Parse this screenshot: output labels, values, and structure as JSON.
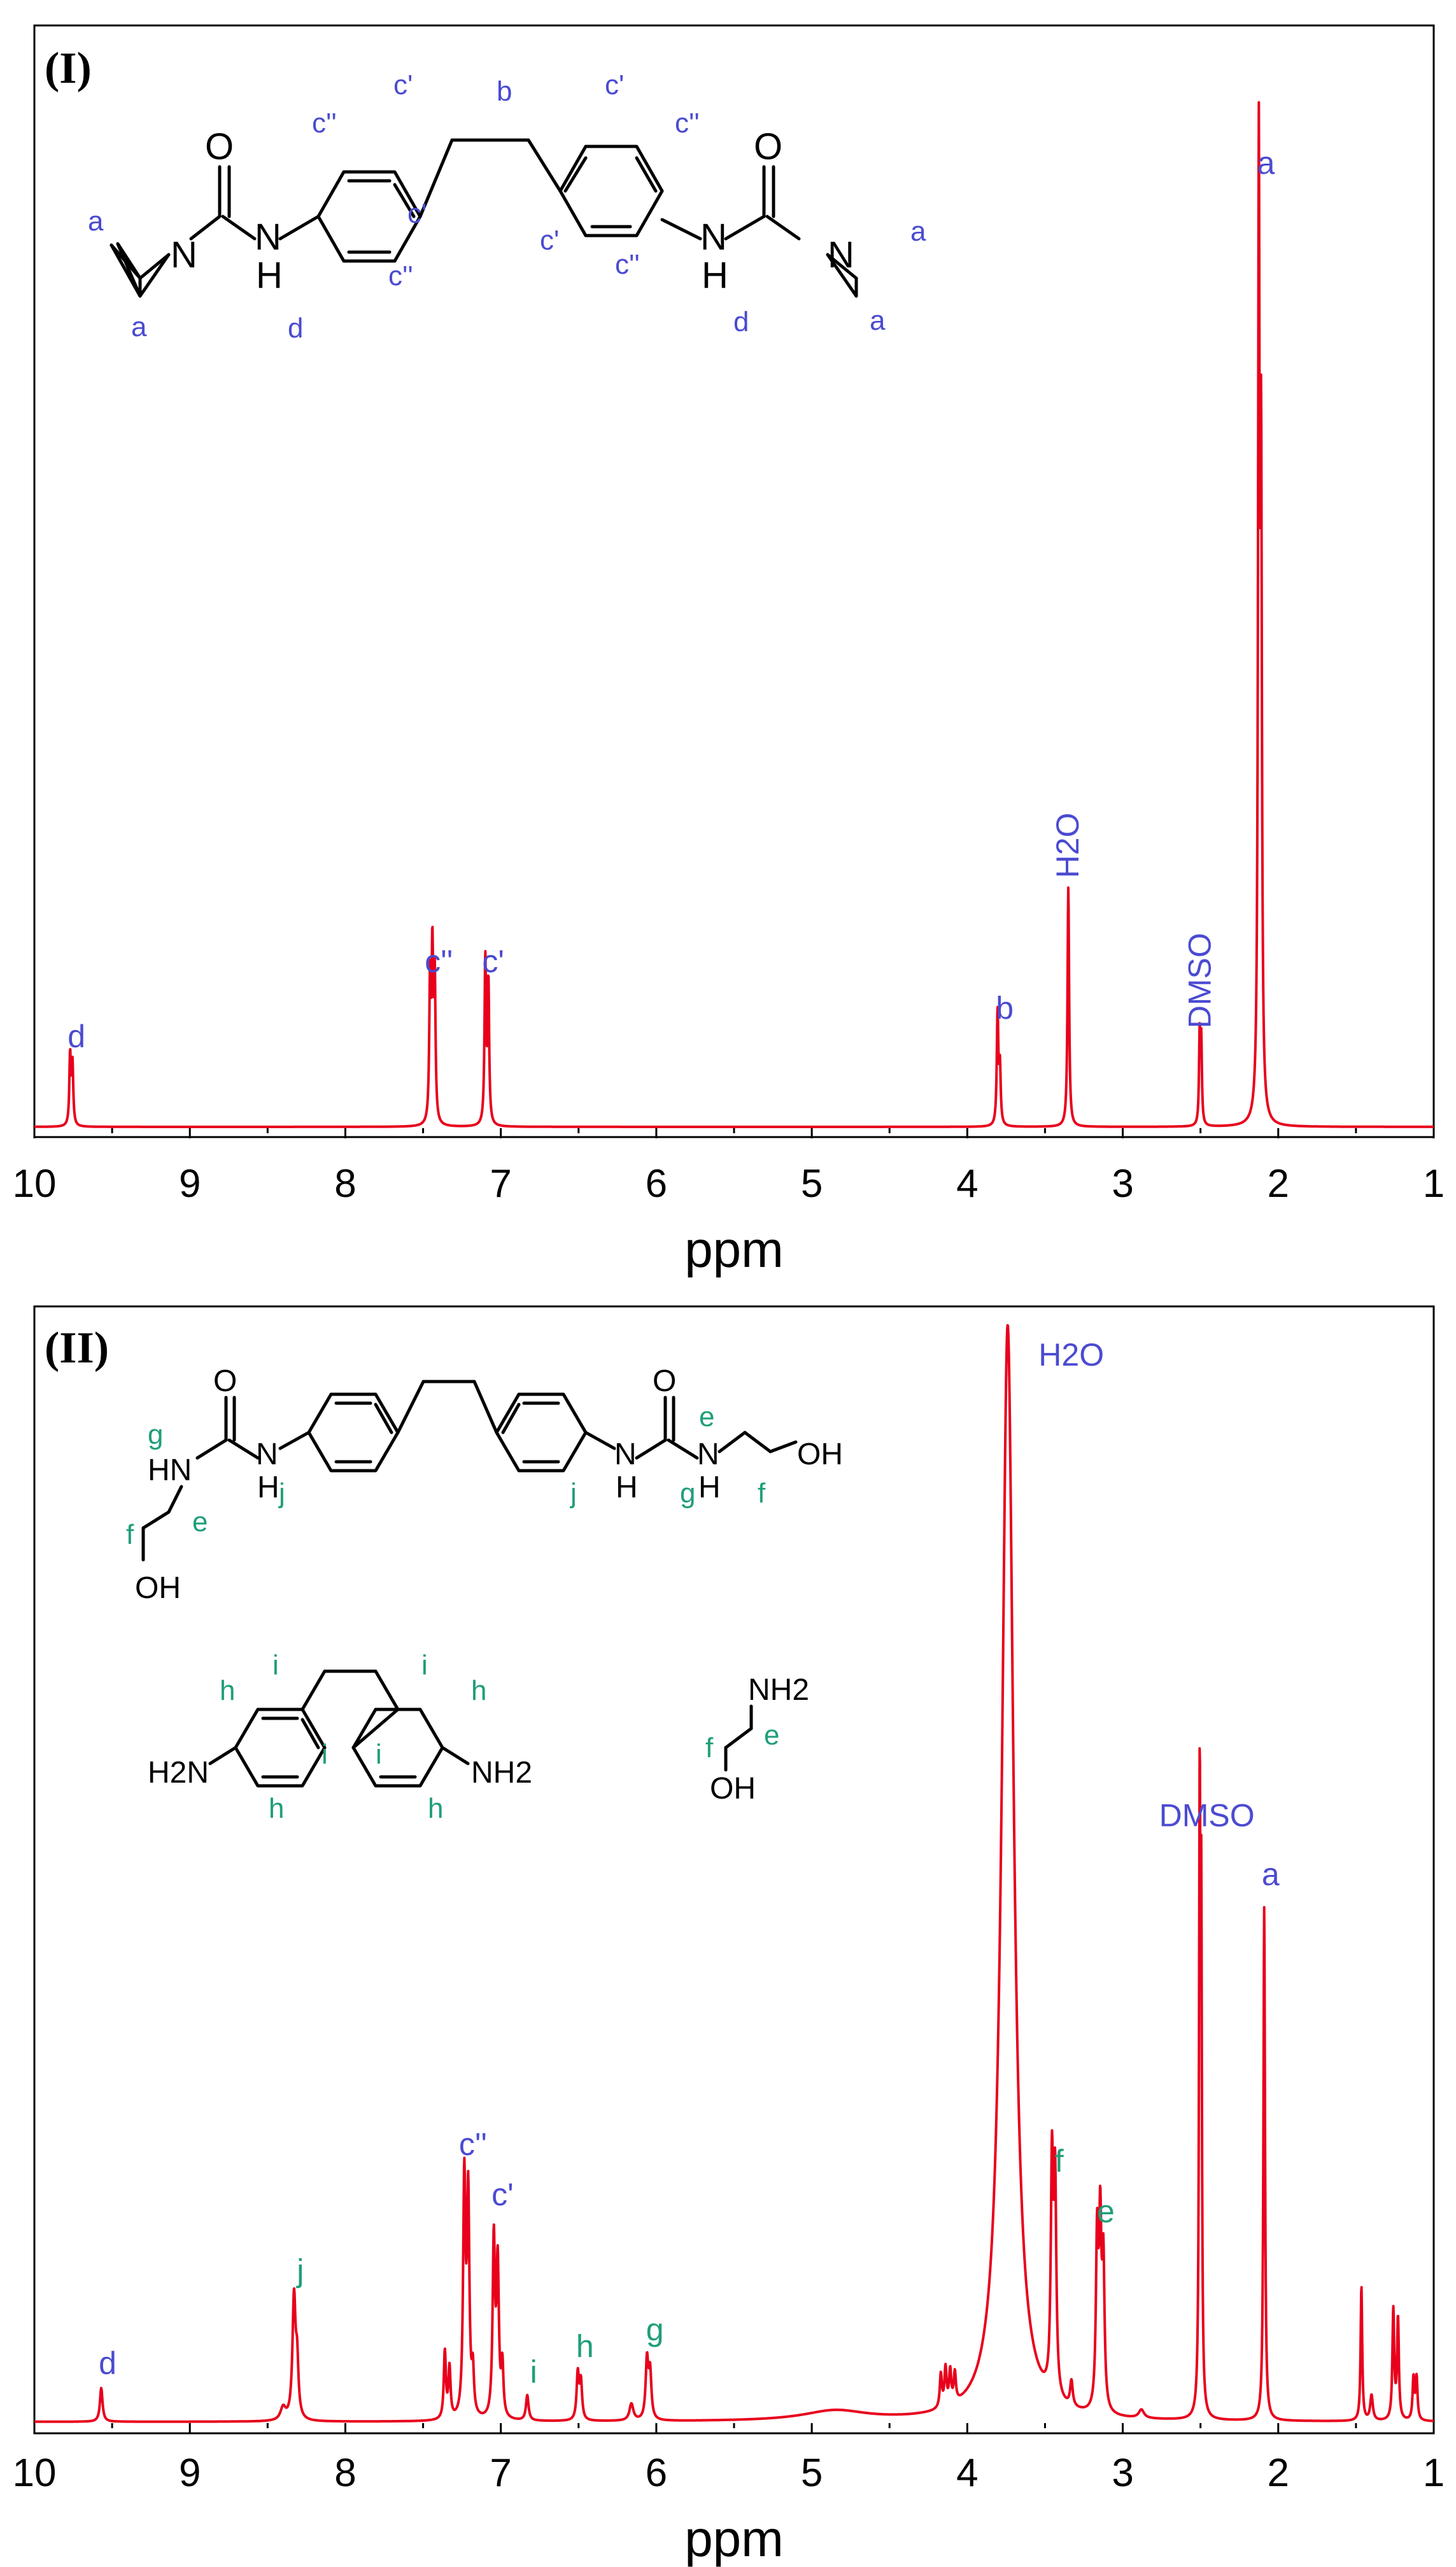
{
  "colors": {
    "spectrum": "#e8001c",
    "label_blue": "#4b4bd1",
    "label_green": "#1f9e7a",
    "axis": "#000000"
  },
  "chart_data": [
    {
      "type": "line",
      "panel_label": "(I)",
      "xlabel": "ppm",
      "ylabel": "",
      "xlim": [
        10,
        1
      ],
      "x_reversed": true,
      "ylim": [
        0,
        1
      ],
      "grid": false,
      "x_ticks": [
        "10",
        "9",
        "8",
        "7",
        "6",
        "5",
        "4",
        "3",
        "2",
        "1"
      ],
      "peaks": [
        {
          "label": "d",
          "ppm": 9.77,
          "height": 0.07,
          "color": "blue"
        },
        {
          "label": "c''",
          "ppm": 7.44,
          "height": 0.15,
          "color": "blue"
        },
        {
          "label": "c'",
          "ppm": 7.09,
          "height": 0.15,
          "color": "blue"
        },
        {
          "label": "b",
          "ppm": 3.8,
          "height": 0.1,
          "color": "blue"
        },
        {
          "label": "H2O",
          "ppm": 3.35,
          "height": 0.25,
          "color": "blue"
        },
        {
          "label": "DMSO",
          "ppm": 2.5,
          "height": 0.09,
          "color": "blue"
        },
        {
          "label": "a",
          "ppm": 2.12,
          "height": 1.0,
          "color": "blue"
        }
      ],
      "series": [
        {
          "lines": [
            {
              "ppm": 9.77,
              "height": 0.075,
              "width": 0.006
            },
            {
              "ppm": 9.755,
              "height": 0.065,
              "width": 0.006
            },
            {
              "ppm": 7.455,
              "height": 0.15,
              "width": 0.006
            },
            {
              "ppm": 7.44,
              "height": 0.175,
              "width": 0.006
            },
            {
              "ppm": 7.425,
              "height": 0.15,
              "width": 0.006
            },
            {
              "ppm": 7.1,
              "height": 0.175,
              "width": 0.006
            },
            {
              "ppm": 7.08,
              "height": 0.15,
              "width": 0.006
            },
            {
              "ppm": 3.805,
              "height": 0.12,
              "width": 0.006
            },
            {
              "ppm": 3.79,
              "height": 0.06,
              "width": 0.006
            },
            {
              "ppm": 3.35,
              "height": 0.255,
              "width": 0.006
            },
            {
              "ppm": 2.505,
              "height": 0.095,
              "width": 0.005
            },
            {
              "ppm": 2.495,
              "height": 0.085,
              "width": 0.005
            },
            {
              "ppm": 2.125,
              "height": 1.0,
              "width": 0.006
            },
            {
              "ppm": 2.11,
              "height": 0.66,
              "width": 0.006
            }
          ]
        }
      ]
    },
    {
      "type": "line",
      "panel_label": "(II)",
      "xlabel": "ppm",
      "ylabel": "",
      "xlim": [
        10,
        1
      ],
      "x_reversed": true,
      "ylim": [
        0,
        1
      ],
      "grid": false,
      "x_ticks": [
        "10",
        "9",
        "8",
        "7",
        "6",
        "5",
        "4",
        "3",
        "2",
        "1"
      ],
      "peaks": [
        {
          "label": "d",
          "ppm": 9.57,
          "height": 0.04,
          "color": "blue"
        },
        {
          "label": "j",
          "ppm": 8.33,
          "height": 0.15,
          "color": "green"
        },
        {
          "label": "c''",
          "ppm": 7.22,
          "height": 0.3,
          "color": "blue"
        },
        {
          "label": "c'",
          "ppm": 7.03,
          "height": 0.24,
          "color": "blue"
        },
        {
          "label": "i",
          "ppm": 6.83,
          "height": 0.03,
          "color": "green"
        },
        {
          "label": "h",
          "ppm": 6.5,
          "height": 0.06,
          "color": "green"
        },
        {
          "label": "g",
          "ppm": 6.05,
          "height": 0.08,
          "color": "green"
        },
        {
          "label": "H2O",
          "ppm": 3.72,
          "height": 1.0,
          "color": "blue"
        },
        {
          "label": "f",
          "ppm": 3.45,
          "height": 0.28,
          "color": "green"
        },
        {
          "label": "e",
          "ppm": 3.15,
          "height": 0.22,
          "color": "green"
        },
        {
          "label": "DMSO",
          "ppm": 2.5,
          "height": 0.69,
          "color": "blue"
        },
        {
          "label": "a",
          "ppm": 2.09,
          "height": 0.62,
          "color": "blue"
        }
      ],
      "series": [
        {
          "lines": [
            {
              "ppm": 9.57,
              "height": 0.04,
              "width": 0.01
            },
            {
              "ppm": 8.4,
              "height": 0.015,
              "width": 0.02
            },
            {
              "ppm": 8.33,
              "height": 0.145,
              "width": 0.012
            },
            {
              "ppm": 8.31,
              "height": 0.06,
              "width": 0.01
            },
            {
              "ppm": 7.36,
              "height": 0.08,
              "width": 0.008
            },
            {
              "ppm": 7.33,
              "height": 0.06,
              "width": 0.008
            },
            {
              "ppm": 7.235,
              "height": 0.28,
              "width": 0.009
            },
            {
              "ppm": 7.21,
              "height": 0.26,
              "width": 0.009
            },
            {
              "ppm": 7.18,
              "height": 0.05,
              "width": 0.008
            },
            {
              "ppm": 7.045,
              "height": 0.21,
              "width": 0.009
            },
            {
              "ppm": 7.02,
              "height": 0.18,
              "width": 0.009
            },
            {
              "ppm": 6.99,
              "height": 0.06,
              "width": 0.008
            },
            {
              "ppm": 6.83,
              "height": 0.03,
              "width": 0.01
            },
            {
              "ppm": 6.505,
              "height": 0.055,
              "width": 0.009
            },
            {
              "ppm": 6.485,
              "height": 0.045,
              "width": 0.009
            },
            {
              "ppm": 6.16,
              "height": 0.02,
              "width": 0.015
            },
            {
              "ppm": 6.06,
              "height": 0.07,
              "width": 0.01
            },
            {
              "ppm": 6.04,
              "height": 0.055,
              "width": 0.01
            },
            {
              "ppm": 4.85,
              "height": 0.012,
              "width": 0.25
            },
            {
              "ppm": 4.17,
              "height": 0.04,
              "width": 0.008
            },
            {
              "ppm": 4.14,
              "height": 0.045,
              "width": 0.008
            },
            {
              "ppm": 4.11,
              "height": 0.04,
              "width": 0.008
            },
            {
              "ppm": 4.08,
              "height": 0.035,
              "width": 0.008
            },
            {
              "ppm": 3.74,
              "height": 1.3,
              "width": 0.045
            },
            {
              "ppm": 3.455,
              "height": 0.27,
              "width": 0.009
            },
            {
              "ppm": 3.435,
              "height": 0.25,
              "width": 0.009
            },
            {
              "ppm": 3.33,
              "height": 0.03,
              "width": 0.01
            },
            {
              "ppm": 3.165,
              "height": 0.2,
              "width": 0.009
            },
            {
              "ppm": 3.145,
              "height": 0.21,
              "width": 0.009
            },
            {
              "ppm": 3.125,
              "height": 0.17,
              "width": 0.009
            },
            {
              "ppm": 2.88,
              "height": 0.01,
              "width": 0.02
            },
            {
              "ppm": 2.505,
              "height": 0.7,
              "width": 0.005
            },
            {
              "ppm": 2.495,
              "height": 0.55,
              "width": 0.005
            },
            {
              "ppm": 2.09,
              "height": 0.61,
              "width": 0.006
            },
            {
              "ppm": 1.465,
              "height": 0.16,
              "width": 0.006
            },
            {
              "ppm": 1.4,
              "height": 0.03,
              "width": 0.01
            },
            {
              "ppm": 1.26,
              "height": 0.13,
              "width": 0.007
            },
            {
              "ppm": 1.23,
              "height": 0.12,
              "width": 0.007
            },
            {
              "ppm": 1.13,
              "height": 0.05,
              "width": 0.007
            },
            {
              "ppm": 1.11,
              "height": 0.05,
              "width": 0.007
            }
          ]
        }
      ]
    }
  ],
  "structure_I": {
    "atoms": {
      "O1": "O",
      "O2": "O",
      "N1": "N",
      "N2": "N",
      "NH1": "N",
      "NH2": "N",
      "H1": "H",
      "H2": "H"
    },
    "labels": {
      "a": "a",
      "b": "b",
      "c1": "c'",
      "c2": "c''",
      "d": "d"
    }
  },
  "structure_II": {
    "atoms": {
      "O": "O",
      "HN": "HN",
      "N": "N",
      "H": "H",
      "OH": "OH",
      "H2N": "H2N",
      "NH2": "NH2"
    },
    "labels": {
      "e": "e",
      "f": "f",
      "g": "g",
      "h": "h",
      "i": "i",
      "j": "j"
    }
  }
}
